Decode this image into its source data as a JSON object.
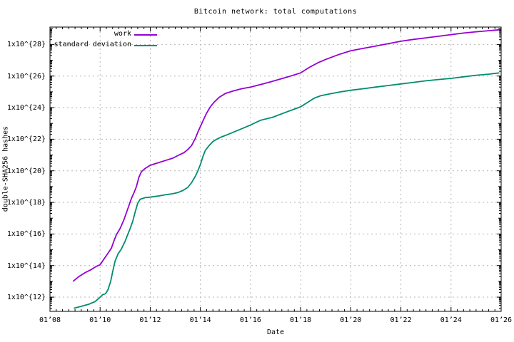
{
  "chart_data": {
    "type": "line",
    "title": "Bitcoin network: total computations",
    "xlabel": "Date",
    "ylabel": "double-SHA256 hashes",
    "grid": true,
    "legend_position": "top-left-inside",
    "background_color": "#ffffff",
    "axis_color": "#000000",
    "grid_color": "#b4b4b4",
    "x_axis": {
      "tick_labels": [
        "01’08",
        "01’10",
        "01’12",
        "01’14",
        "01’16",
        "01’18",
        "01’20",
        "01’22",
        "01’24",
        "01’26"
      ],
      "tick_years": [
        2008,
        2010,
        2012,
        2014,
        2016,
        2018,
        2020,
        2022,
        2024,
        2026
      ],
      "range_years": [
        2008,
        2026
      ],
      "minor_tick_interval_years": 0.25
    },
    "y_axis": {
      "scale": "log10",
      "tick_labels": [
        "1x10^{12}",
        "1x10^{14}",
        "1x10^{16}",
        "1x10^{18}",
        "1x10^{20}",
        "1x10^{22}",
        "1x10^{24}",
        "1x10^{26}",
        "1x10^{28}"
      ],
      "tick_exponents": [
        12,
        14,
        16,
        18,
        20,
        22,
        24,
        26,
        28
      ],
      "range_exponents": [
        11.1,
        29.1
      ]
    },
    "series": [
      {
        "name": "work",
        "color": "#9400d3",
        "points_year_log10": [
          [
            2008.92,
            13.0
          ],
          [
            2009.15,
            13.3
          ],
          [
            2009.4,
            13.55
          ],
          [
            2009.65,
            13.75
          ],
          [
            2009.85,
            13.95
          ],
          [
            2010.0,
            14.05
          ],
          [
            2010.15,
            14.4
          ],
          [
            2010.3,
            14.75
          ],
          [
            2010.45,
            15.1
          ],
          [
            2010.55,
            15.55
          ],
          [
            2010.65,
            15.95
          ],
          [
            2010.8,
            16.35
          ],
          [
            2010.95,
            16.9
          ],
          [
            2011.05,
            17.35
          ],
          [
            2011.15,
            17.8
          ],
          [
            2011.25,
            18.25
          ],
          [
            2011.35,
            18.6
          ],
          [
            2011.45,
            19.0
          ],
          [
            2011.55,
            19.6
          ],
          [
            2011.65,
            19.95
          ],
          [
            2011.8,
            20.15
          ],
          [
            2012.0,
            20.35
          ],
          [
            2012.3,
            20.5
          ],
          [
            2012.6,
            20.65
          ],
          [
            2012.9,
            20.8
          ],
          [
            2013.15,
            21.0
          ],
          [
            2013.35,
            21.15
          ],
          [
            2013.5,
            21.35
          ],
          [
            2013.65,
            21.6
          ],
          [
            2013.8,
            22.05
          ],
          [
            2013.9,
            22.45
          ],
          [
            2014.0,
            22.8
          ],
          [
            2014.1,
            23.15
          ],
          [
            2014.25,
            23.65
          ],
          [
            2014.4,
            24.05
          ],
          [
            2014.55,
            24.35
          ],
          [
            2014.75,
            24.65
          ],
          [
            2015.0,
            24.9
          ],
          [
            2015.3,
            25.05
          ],
          [
            2015.65,
            25.2
          ],
          [
            2016.0,
            25.3
          ],
          [
            2016.5,
            25.5
          ],
          [
            2017.0,
            25.72
          ],
          [
            2017.5,
            25.95
          ],
          [
            2018.0,
            26.2
          ],
          [
            2018.35,
            26.55
          ],
          [
            2018.7,
            26.85
          ],
          [
            2019.0,
            27.05
          ],
          [
            2019.5,
            27.35
          ],
          [
            2020.0,
            27.6
          ],
          [
            2020.5,
            27.75
          ],
          [
            2021.0,
            27.9
          ],
          [
            2021.5,
            28.05
          ],
          [
            2022.0,
            28.2
          ],
          [
            2022.5,
            28.32
          ],
          [
            2023.0,
            28.42
          ],
          [
            2023.5,
            28.52
          ],
          [
            2024.0,
            28.62
          ],
          [
            2024.5,
            28.72
          ],
          [
            2025.0,
            28.8
          ],
          [
            2025.5,
            28.87
          ],
          [
            2025.93,
            28.93
          ]
        ]
      },
      {
        "name": "standard deviation",
        "color": "#008c6e",
        "points_year_log10": [
          [
            2008.95,
            11.3
          ],
          [
            2009.25,
            11.42
          ],
          [
            2009.55,
            11.55
          ],
          [
            2009.8,
            11.72
          ],
          [
            2010.0,
            12.0
          ],
          [
            2010.1,
            12.15
          ],
          [
            2010.22,
            12.22
          ],
          [
            2010.32,
            12.5
          ],
          [
            2010.42,
            13.0
          ],
          [
            2010.52,
            13.75
          ],
          [
            2010.6,
            14.3
          ],
          [
            2010.72,
            14.75
          ],
          [
            2010.85,
            15.05
          ],
          [
            2011.0,
            15.55
          ],
          [
            2011.1,
            15.95
          ],
          [
            2011.2,
            16.35
          ],
          [
            2011.3,
            16.8
          ],
          [
            2011.4,
            17.4
          ],
          [
            2011.5,
            17.95
          ],
          [
            2011.6,
            18.2
          ],
          [
            2011.8,
            18.3
          ],
          [
            2012.0,
            18.33
          ],
          [
            2012.3,
            18.4
          ],
          [
            2012.6,
            18.48
          ],
          [
            2012.9,
            18.55
          ],
          [
            2013.1,
            18.62
          ],
          [
            2013.3,
            18.75
          ],
          [
            2013.5,
            18.95
          ],
          [
            2013.65,
            19.25
          ],
          [
            2013.8,
            19.65
          ],
          [
            2013.9,
            20.0
          ],
          [
            2014.0,
            20.4
          ],
          [
            2014.1,
            20.9
          ],
          [
            2014.2,
            21.3
          ],
          [
            2014.35,
            21.6
          ],
          [
            2014.5,
            21.85
          ],
          [
            2014.65,
            22.0
          ],
          [
            2014.85,
            22.15
          ],
          [
            2015.1,
            22.3
          ],
          [
            2015.4,
            22.5
          ],
          [
            2015.7,
            22.7
          ],
          [
            2016.0,
            22.9
          ],
          [
            2016.4,
            23.2
          ],
          [
            2016.9,
            23.4
          ],
          [
            2017.4,
            23.7
          ],
          [
            2018.0,
            24.05
          ],
          [
            2018.3,
            24.35
          ],
          [
            2018.55,
            24.6
          ],
          [
            2018.8,
            24.75
          ],
          [
            2019.2,
            24.88
          ],
          [
            2019.6,
            25.0
          ],
          [
            2020.0,
            25.1
          ],
          [
            2020.5,
            25.2
          ],
          [
            2021.0,
            25.3
          ],
          [
            2021.5,
            25.4
          ],
          [
            2022.0,
            25.5
          ],
          [
            2022.5,
            25.6
          ],
          [
            2023.0,
            25.7
          ],
          [
            2023.5,
            25.78
          ],
          [
            2024.0,
            25.85
          ],
          [
            2024.5,
            25.95
          ],
          [
            2025.0,
            26.05
          ],
          [
            2025.5,
            26.12
          ],
          [
            2025.93,
            26.2
          ]
        ]
      }
    ]
  }
}
